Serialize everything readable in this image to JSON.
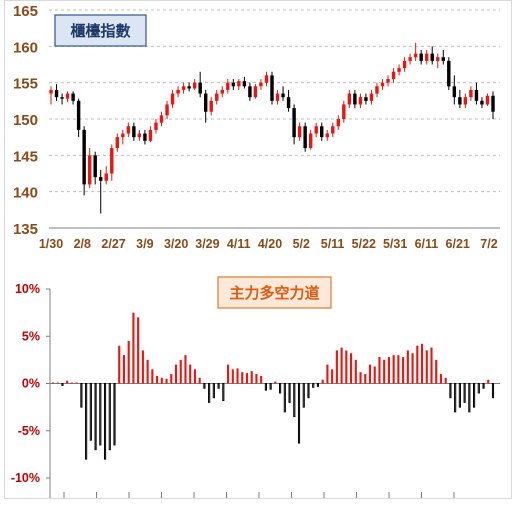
{
  "chart_data": [
    {
      "type": "candlestick",
      "title": "櫃檯指數",
      "ylim": [
        135,
        165
      ],
      "yticks": [
        135,
        140,
        145,
        150,
        155,
        160,
        165
      ],
      "xtick_labels": [
        "1/30",
        "2/8",
        "2/27",
        "3/9",
        "3/20",
        "3/29",
        "4/11",
        "4/20",
        "5/2",
        "5/11",
        "5/22",
        "5/31",
        "6/11",
        "6/21",
        "7/2"
      ],
      "grid": "horizontal dashed",
      "colors": {
        "up": "#e8170f",
        "down": "#000000",
        "axis_label": "#8a4a1a",
        "title_bg": "#dbe6f2",
        "title_border": "#2f5597"
      },
      "ohlc": [
        [
          153.5,
          154.5,
          152.0,
          154.0
        ],
        [
          154.0,
          154.8,
          152.5,
          153.0
        ],
        [
          153.0,
          153.5,
          152.0,
          152.8
        ],
        [
          152.8,
          153.8,
          152.3,
          153.5
        ],
        [
          153.5,
          153.8,
          152.0,
          152.5
        ],
        [
          152.5,
          152.8,
          147.5,
          148.5
        ],
        [
          148.5,
          149.0,
          139.5,
          141.0
        ],
        [
          141.0,
          146.0,
          140.5,
          145.0
        ],
        [
          145.0,
          145.5,
          141.0,
          142.0
        ],
        [
          142.0,
          143.0,
          137.0,
          141.5
        ],
        [
          141.5,
          143.5,
          141.0,
          142.5
        ],
        [
          142.5,
          146.5,
          141.5,
          146.0
        ],
        [
          146.0,
          148.0,
          145.5,
          147.5
        ],
        [
          147.5,
          148.5,
          146.5,
          148.0
        ],
        [
          148.0,
          149.5,
          147.5,
          149.0
        ],
        [
          149.0,
          149.5,
          147.0,
          147.5
        ],
        [
          147.5,
          148.5,
          147.0,
          148.0
        ],
        [
          148.0,
          148.5,
          146.5,
          147.0
        ],
        [
          147.0,
          149.0,
          146.8,
          148.5
        ],
        [
          148.5,
          150.0,
          148.0,
          149.5
        ],
        [
          149.5,
          151.0,
          149.0,
          150.5
        ],
        [
          150.5,
          152.5,
          150.0,
          152.0
        ],
        [
          152.0,
          154.0,
          151.5,
          153.5
        ],
        [
          153.5,
          154.5,
          153.0,
          154.0
        ],
        [
          154.0,
          155.0,
          153.5,
          154.5
        ],
        [
          154.5,
          155.0,
          153.8,
          154.2
        ],
        [
          154.2,
          155.5,
          154.0,
          155.0
        ],
        [
          155.0,
          156.5,
          153.0,
          153.5
        ],
        [
          153.5,
          154.0,
          149.5,
          151.0
        ],
        [
          151.0,
          153.0,
          150.5,
          152.5
        ],
        [
          152.5,
          154.0,
          152.0,
          153.5
        ],
        [
          153.5,
          154.5,
          153.0,
          154.0
        ],
        [
          154.0,
          155.5,
          153.5,
          155.0
        ],
        [
          155.0,
          155.5,
          154.0,
          154.5
        ],
        [
          154.5,
          155.5,
          154.0,
          155.2
        ],
        [
          155.2,
          155.8,
          154.2,
          154.5
        ],
        [
          154.5,
          155.0,
          152.5,
          153.0
        ],
        [
          153.0,
          154.8,
          152.8,
          154.5
        ],
        [
          154.5,
          155.5,
          154.0,
          155.0
        ],
        [
          155.0,
          156.5,
          154.5,
          156.0
        ],
        [
          156.0,
          156.5,
          152.0,
          152.5
        ],
        [
          152.5,
          154.0,
          152.0,
          153.5
        ],
        [
          153.5,
          154.5,
          152.5,
          153.0
        ],
        [
          153.0,
          154.0,
          151.0,
          151.5
        ],
        [
          151.5,
          152.0,
          146.5,
          147.5
        ],
        [
          147.5,
          149.5,
          147.0,
          149.0
        ],
        [
          149.0,
          149.5,
          145.5,
          146.0
        ],
        [
          146.0,
          148.5,
          145.8,
          148.0
        ],
        [
          148.0,
          149.5,
          147.5,
          149.0
        ],
        [
          149.0,
          149.5,
          147.0,
          147.5
        ],
        [
          147.5,
          148.5,
          147.0,
          148.0
        ],
        [
          148.0,
          149.5,
          147.5,
          149.0
        ],
        [
          149.0,
          150.5,
          148.5,
          150.0
        ],
        [
          150.0,
          152.5,
          149.5,
          152.0
        ],
        [
          152.0,
          154.0,
          151.5,
          153.5
        ],
        [
          153.5,
          154.0,
          151.5,
          152.0
        ],
        [
          152.0,
          153.5,
          151.5,
          153.0
        ],
        [
          153.0,
          153.5,
          152.0,
          152.5
        ],
        [
          152.5,
          154.0,
          152.0,
          153.5
        ],
        [
          153.5,
          155.0,
          153.0,
          154.5
        ],
        [
          154.5,
          155.5,
          154.0,
          155.0
        ],
        [
          155.0,
          156.0,
          154.5,
          155.5
        ],
        [
          155.5,
          157.0,
          155.0,
          156.5
        ],
        [
          156.5,
          157.5,
          156.0,
          157.0
        ],
        [
          157.0,
          158.5,
          156.5,
          158.0
        ],
        [
          158.0,
          159.0,
          157.5,
          158.5
        ],
        [
          158.5,
          160.5,
          158.0,
          159.0
        ],
        [
          159.0,
          159.5,
          157.5,
          158.0
        ],
        [
          158.0,
          159.5,
          157.5,
          159.0
        ],
        [
          159.0,
          160.0,
          157.5,
          158.0
        ],
        [
          158.0,
          159.0,
          157.0,
          158.5
        ],
        [
          158.5,
          159.5,
          157.5,
          158.0
        ],
        [
          158.0,
          158.5,
          154.0,
          154.5
        ],
        [
          154.5,
          156.0,
          152.0,
          153.0
        ],
        [
          153.0,
          154.0,
          151.5,
          152.0
        ],
        [
          152.0,
          153.5,
          151.5,
          153.0
        ],
        [
          153.0,
          154.5,
          152.5,
          154.0
        ],
        [
          154.0,
          155.0,
          152.0,
          152.5
        ],
        [
          152.5,
          153.0,
          151.5,
          152.0
        ],
        [
          152.0,
          153.5,
          151.8,
          153.2
        ],
        [
          153.2,
          153.8,
          150.0,
          151.0
        ]
      ]
    },
    {
      "type": "bar",
      "title": "主力多空力道",
      "ylim": [
        -10,
        10
      ],
      "yticks": [
        -10,
        -5,
        0,
        5,
        10
      ],
      "ytick_labels": [
        "-10%",
        "-5%",
        "0%",
        "5%",
        "10%"
      ],
      "colors": {
        "positive": "#e8170f",
        "negative": "#000000",
        "title_bg": "#fde9d9",
        "title_border": "#e07b28"
      },
      "values": [
        0.1,
        0.1,
        -0.2,
        0.3,
        0.1,
        0.1,
        -2.5,
        -8.0,
        -6.0,
        -7.0,
        -6.5,
        -8.0,
        -7.0,
        -6.5,
        4.0,
        3.0,
        4.5,
        7.5,
        7.0,
        3.5,
        2.5,
        1.5,
        0.8,
        0.6,
        0.5,
        1.0,
        2.0,
        2.5,
        3.0,
        2.0,
        1.5,
        0.6,
        -0.5,
        -2.0,
        -1.5,
        -0.5,
        -1.8,
        2.0,
        1.5,
        1.6,
        1.2,
        1.1,
        1.3,
        1.0,
        0.8,
        -0.7,
        -0.6,
        0.2,
        -1.0,
        -3.0,
        -2.0,
        -3.5,
        -6.3,
        -2.5,
        -1.5,
        -0.4,
        -0.3,
        0.4,
        2.0,
        1.5,
        3.5,
        3.8,
        3.5,
        3.2,
        2.5,
        1.2,
        1.0,
        2.0,
        1.8,
        2.8,
        2.5,
        2.8,
        3.0,
        3.0,
        2.8,
        3.5,
        3.2,
        4.0,
        4.2,
        3.5,
        3.8,
        2.5,
        1.0,
        0.6,
        -1.5,
        -3.0,
        -2.5,
        -2.0,
        -3.0,
        -2.5,
        -1.0,
        -0.5,
        0.4,
        -1.5
      ]
    }
  ]
}
